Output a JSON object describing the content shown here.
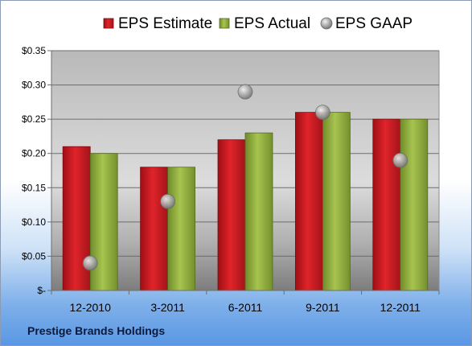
{
  "company_name": "Prestige Brands Holdings",
  "colors": {
    "estimate": "#c8141c",
    "actual": "#8fae3a",
    "gaap": "#a0a0a0"
  },
  "chart_data": {
    "type": "bar",
    "categories": [
      "12-2010",
      "3-2011",
      "6-2011",
      "9-2011",
      "12-2011"
    ],
    "series": [
      {
        "name": "EPS Estimate",
        "kind": "bar",
        "values": [
          0.21,
          0.18,
          0.22,
          0.26,
          0.25
        ]
      },
      {
        "name": "EPS Actual",
        "kind": "bar",
        "values": [
          0.2,
          0.18,
          0.23,
          0.26,
          0.25
        ]
      },
      {
        "name": "EPS GAAP",
        "kind": "scatter",
        "values": [
          0.04,
          0.13,
          0.29,
          0.26,
          0.19
        ]
      }
    ],
    "ylim": [
      0,
      0.35
    ],
    "yticks": [
      0,
      0.05,
      0.1,
      0.15,
      0.2,
      0.25,
      0.3,
      0.35
    ],
    "ytick_labels": [
      "$-",
      "$0.05",
      "$0.10",
      "$0.15",
      "$0.20",
      "$0.25",
      "$0.30",
      "$0.35"
    ],
    "grid": true,
    "legend": "top"
  }
}
